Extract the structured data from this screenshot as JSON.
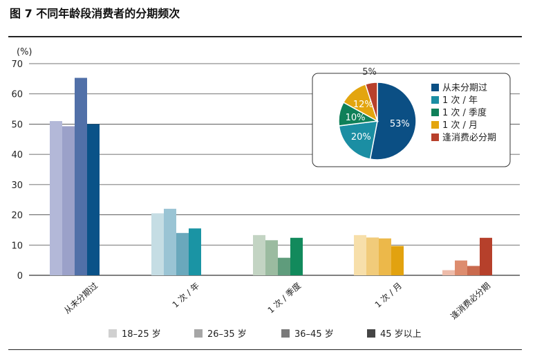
{
  "title": "图 7  不同年龄段消费者的分期频次",
  "chart_data": [
    {
      "type": "bar",
      "ylabel": "(%)",
      "ylim": [
        0,
        70
      ],
      "yticks": [
        0,
        10,
        20,
        30,
        40,
        50,
        60,
        70
      ],
      "grid": true,
      "legend_position": "bottom",
      "categories": [
        "从未分期过",
        "1 次 / 年",
        "1 次 / 季度",
        "1 次 / 月",
        "逢消费必分期"
      ],
      "series": [
        {
          "name": "18–25 岁",
          "values": [
            51,
            20.5,
            13.3,
            13.3,
            1.7
          ]
        },
        {
          "name": "26–35 岁",
          "values": [
            49.3,
            22,
            11.6,
            12.5,
            4.9
          ]
        },
        {
          "name": "36–45 岁",
          "values": [
            65.3,
            14,
            5.8,
            12.2,
            3.1
          ]
        },
        {
          "name": "45 岁以上",
          "values": [
            50,
            15.5,
            12.4,
            9.7,
            12.4
          ]
        }
      ],
      "category_colors": [
        [
          "#b3b8d8",
          "#9ba1c9",
          "#5170a8",
          "#0a5288"
        ],
        [
          "#c5dde4",
          "#9ac4d4",
          "#6aa8bc",
          "#1a94a4"
        ],
        [
          "#c3d4c3",
          "#9bbba0",
          "#5f9c7c",
          "#128a5c"
        ],
        [
          "#f7dfaa",
          "#f1cb7a",
          "#ecb84a",
          "#e2a20f"
        ],
        [
          "#eebcaa",
          "#dd8c6e",
          "#c96a4e",
          "#b6402b"
        ]
      ],
      "legend_colors": [
        "#d0d0d0",
        "#a6a6a6",
        "#7a7a7a",
        "#454545"
      ]
    },
    {
      "type": "pie",
      "legend_position": "right",
      "slices": [
        {
          "label": "从未分期过",
          "value": 53,
          "display": "53%",
          "color": "#0b4f84"
        },
        {
          "label": "1 次 / 年",
          "value": 20,
          "display": "20%",
          "color": "#1b8ea3"
        },
        {
          "label": "1 次 / 季度",
          "value": 10,
          "display": "10%",
          "color": "#0f8059"
        },
        {
          "label": "1 次 / 月",
          "value": 12,
          "display": "12%",
          "color": "#e3a50f"
        },
        {
          "label": "逢消费必分期",
          "value": 5,
          "display": "5%",
          "color": "#b8402b"
        }
      ]
    }
  ]
}
